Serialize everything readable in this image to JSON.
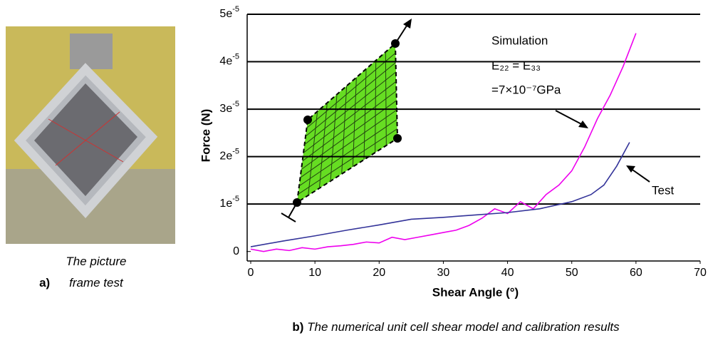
{
  "caption_a": {
    "label": "a)",
    "text": "The picture frame test"
  },
  "caption_b": {
    "label": "b)",
    "text": "The numerical unit cell shear model and calibration results"
  },
  "chart_data": {
    "type": "line",
    "x_label": "Shear Angle (°)",
    "y_label": "Force (N)",
    "annotations": [
      "Simulation",
      "E₂₂ = E₃₃",
      "=7×10⁻⁷GPa",
      "Test"
    ],
    "xlim": [
      0,
      70
    ],
    "xticks": [
      0,
      10,
      20,
      30,
      40,
      50,
      60,
      70
    ],
    "ylim": [
      -2e-06,
      5e-05
    ],
    "yticks": [
      0,
      {
        "value": 1e-05,
        "label": "1e-5"
      },
      {
        "value": 2e-05,
        "label": "2e-5"
      },
      {
        "value": 3e-05,
        "label": "3e-5"
      },
      {
        "value": 4e-05,
        "label": "4e-5"
      },
      {
        "value": 5e-05,
        "label": "5e-5"
      }
    ],
    "grid": true,
    "series": [
      {
        "name": "Simulation",
        "color": "#ee00ee",
        "x": [
          0,
          2,
          4,
          6,
          8,
          10,
          12,
          14,
          16,
          18,
          20,
          22,
          24,
          26,
          28,
          30,
          32,
          34,
          36,
          38,
          40,
          42,
          44,
          46,
          48,
          50,
          52,
          54,
          56,
          58,
          60
        ],
        "values": [
          5e-07,
          0,
          5e-07,
          2e-07,
          8e-07,
          5e-07,
          1e-06,
          1.2e-06,
          1.5e-06,
          2e-06,
          1.8e-06,
          3e-06,
          2.5e-06,
          3e-06,
          3.5e-06,
          4e-06,
          4.5e-06,
          5.5e-06,
          7e-06,
          9e-06,
          8e-06,
          1.05e-05,
          9e-06,
          1.2e-05,
          1.4e-05,
          1.7e-05,
          2.2e-05,
          2.8e-05,
          3.3e-05,
          3.9e-05,
          4.6e-05
        ]
      },
      {
        "name": "Test",
        "color": "#333399",
        "x": [
          0,
          5,
          10,
          15,
          20,
          25,
          30,
          35,
          40,
          45,
          50,
          53,
          55,
          57,
          59
        ],
        "values": [
          1e-06,
          2.2e-06,
          3.3e-06,
          4.5e-06,
          5.6e-06,
          6.8e-06,
          7.2e-06,
          7.7e-06,
          8.2e-06,
          9e-06,
          1.05e-05,
          1.2e-05,
          1.4e-05,
          1.8e-05,
          2.3e-05
        ]
      }
    ]
  }
}
